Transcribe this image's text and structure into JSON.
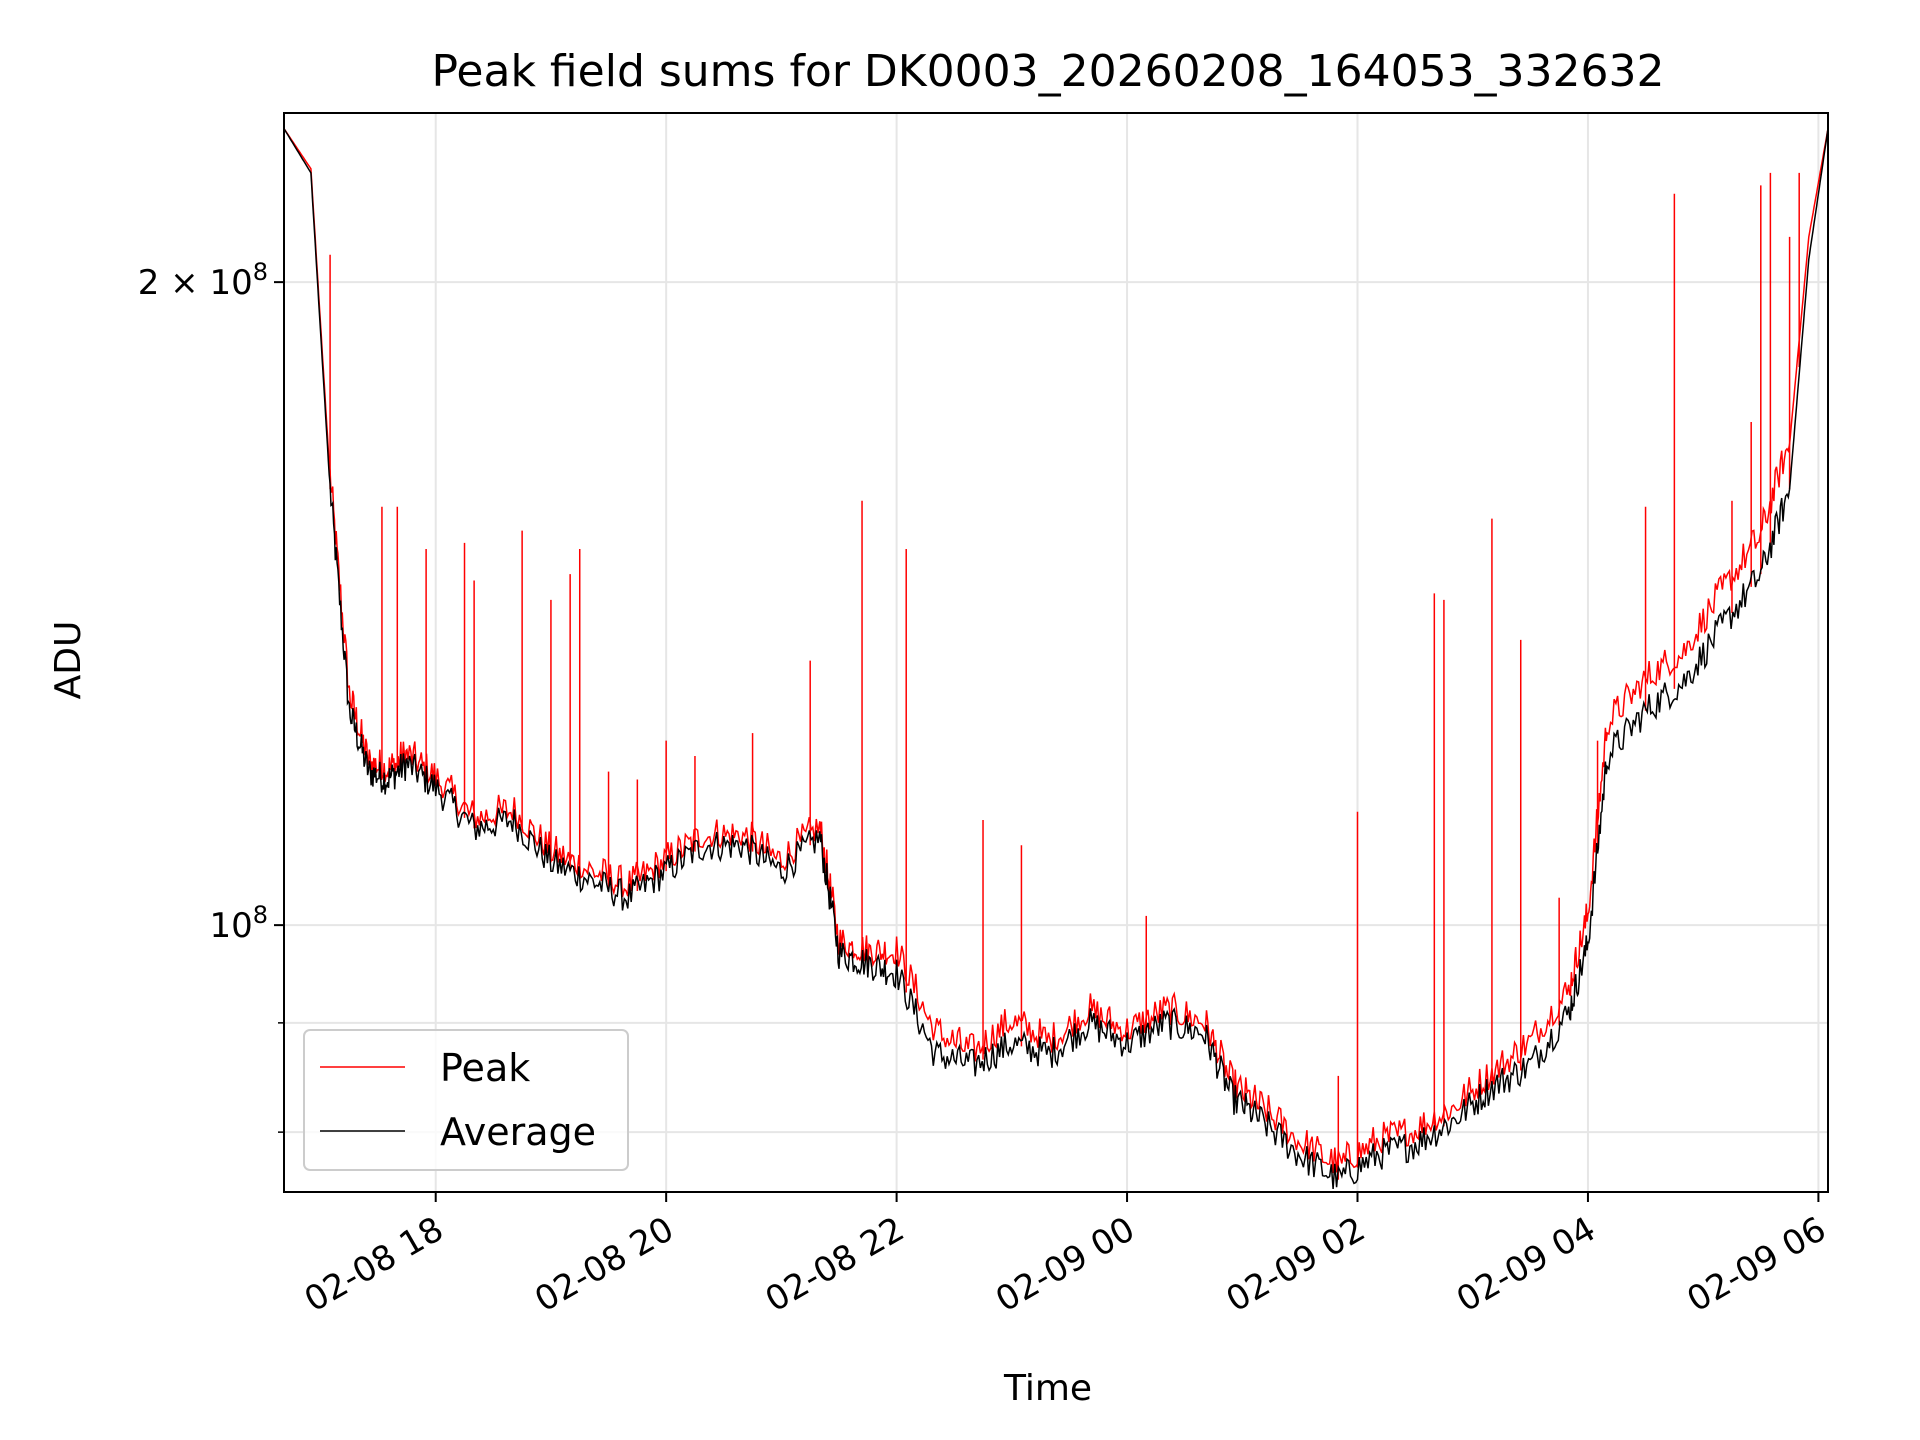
{
  "chart_data": {
    "type": "line",
    "title": "Peak field sums for DK0003_20260208_164053_332632",
    "xlabel": "Time",
    "ylabel": "ADU",
    "yscale": "log",
    "ylim": [
      75000000,
      240000000
    ],
    "xlim": [
      "2026-02-08 16:41",
      "2026-02-09 06:05"
    ],
    "grid": true,
    "legend": {
      "position": "lower-left",
      "entries": [
        "Peak",
        "Average"
      ]
    },
    "x_ticks": [
      "02-08 18",
      "02-08 20",
      "02-08 22",
      "02-09 00",
      "02-09 02",
      "02-09 04",
      "02-09 06"
    ],
    "y_ticks": [
      {
        "value": 200000000,
        "label": "2 × 10⁸",
        "mantissa": "2",
        "base": "10",
        "exp": "8"
      },
      {
        "value": 100000000,
        "label": "10⁸",
        "mantissa": "",
        "base": "10",
        "exp": "8"
      }
    ],
    "y_minor_ticks": [
      80000000,
      90000000
    ],
    "colors": {
      "peak": "#ff0000",
      "average": "#000000",
      "grid": "#e6e6e6"
    },
    "x": [
      "2026-02-08 16:41",
      "2026-02-08 16:55",
      "2026-02-08 17:05",
      "2026-02-08 17:15",
      "2026-02-08 17:25",
      "2026-02-08 17:35",
      "2026-02-08 17:45",
      "2026-02-08 18:00",
      "2026-02-08 18:20",
      "2026-02-08 18:40",
      "2026-02-08 19:00",
      "2026-02-08 19:20",
      "2026-02-08 19:40",
      "2026-02-08 20:00",
      "2026-02-08 20:20",
      "2026-02-08 20:40",
      "2026-02-08 21:00",
      "2026-02-08 21:20",
      "2026-02-08 21:30",
      "2026-02-08 21:45",
      "2026-02-08 22:00",
      "2026-02-08 22:20",
      "2026-02-08 22:40",
      "2026-02-08 23:00",
      "2026-02-08 23:20",
      "2026-02-08 23:40",
      "2026-02-09 00:00",
      "2026-02-09 00:20",
      "2026-02-09 00:40",
      "2026-02-09 00:55",
      "2026-02-09 01:10",
      "2026-02-09 01:30",
      "2026-02-09 01:50",
      "2026-02-09 02:10",
      "2026-02-09 02:30",
      "2026-02-09 02:50",
      "2026-02-09 03:10",
      "2026-02-09 03:30",
      "2026-02-09 03:50",
      "2026-02-09 04:00",
      "2026-02-09 04:10",
      "2026-02-09 04:30",
      "2026-02-09 04:50",
      "2026-02-09 05:10",
      "2026-02-09 05:30",
      "2026-02-09 05:45",
      "2026-02-09 05:55",
      "2026-02-09 06:05"
    ],
    "series": [
      {
        "name": "Peak",
        "values": [
          236000000,
          226000000,
          162000000,
          128000000,
          119000000,
          118000000,
          120000000,
          117000000,
          112000000,
          113000000,
          108000000,
          106000000,
          104000000,
          107000000,
          110000000,
          110000000,
          107000000,
          111000000,
          98000000,
          97000000,
          97000000,
          89000000,
          87000000,
          90000000,
          88000000,
          91000000,
          89000000,
          91000000,
          90000000,
          84000000,
          82000000,
          79000000,
          77000000,
          79000000,
          80000000,
          82000000,
          85000000,
          88000000,
          93000000,
          101000000,
          124000000,
          130000000,
          134000000,
          143000000,
          152000000,
          168000000,
          210000000,
          236000000
        ]
      },
      {
        "name": "Average",
        "values": [
          236000000,
          225000000,
          160000000,
          126000000,
          118000000,
          117000000,
          119000000,
          116000000,
          111000000,
          112000000,
          107000000,
          105000000,
          103000000,
          106000000,
          109000000,
          109000000,
          106000000,
          110000000,
          97000000,
          96000000,
          95000000,
          87000000,
          86000000,
          88000000,
          87000000,
          90000000,
          88000000,
          90000000,
          89000000,
          83000000,
          81000000,
          78000000,
          76000000,
          78000000,
          79000000,
          81000000,
          84000000,
          86000000,
          91000000,
          98000000,
          120000000,
          126000000,
          130000000,
          138000000,
          146000000,
          160000000,
          205000000,
          236000000
        ]
      }
    ],
    "spikes": [
      {
        "x": "2026-02-08 17:05",
        "peak": 206000000
      },
      {
        "x": "2026-02-08 17:32",
        "peak": 157000000
      },
      {
        "x": "2026-02-08 17:40",
        "peak": 157000000
      },
      {
        "x": "2026-02-08 17:55",
        "peak": 150000000
      },
      {
        "x": "2026-02-08 18:15",
        "peak": 151000000
      },
      {
        "x": "2026-02-08 18:20",
        "peak": 145000000
      },
      {
        "x": "2026-02-08 18:45",
        "peak": 153000000
      },
      {
        "x": "2026-02-08 19:00",
        "peak": 142000000
      },
      {
        "x": "2026-02-08 19:10",
        "peak": 146000000
      },
      {
        "x": "2026-02-08 19:15",
        "peak": 150000000
      },
      {
        "x": "2026-02-08 19:30",
        "peak": 118000000
      },
      {
        "x": "2026-02-08 19:45",
        "peak": 117000000
      },
      {
        "x": "2026-02-08 20:00",
        "peak": 122000000
      },
      {
        "x": "2026-02-08 20:15",
        "peak": 120000000
      },
      {
        "x": "2026-02-08 20:45",
        "peak": 123000000
      },
      {
        "x": "2026-02-08 21:15",
        "peak": 133000000
      },
      {
        "x": "2026-02-08 21:42",
        "peak": 158000000
      },
      {
        "x": "2026-02-08 22:05",
        "peak": 150000000
      },
      {
        "x": "2026-02-08 22:45",
        "peak": 112000000
      },
      {
        "x": "2026-02-08 23:05",
        "peak": 109000000
      },
      {
        "x": "2026-02-09 00:10",
        "peak": 101000000
      },
      {
        "x": "2026-02-09 01:50",
        "peak": 85000000
      },
      {
        "x": "2026-02-09 02:00",
        "peak": 113000000
      },
      {
        "x": "2026-02-09 02:40",
        "peak": 143000000
      },
      {
        "x": "2026-02-09 02:45",
        "peak": 142000000
      },
      {
        "x": "2026-02-09 03:10",
        "peak": 155000000
      },
      {
        "x": "2026-02-09 03:25",
        "peak": 136000000
      },
      {
        "x": "2026-02-09 03:45",
        "peak": 103000000
      },
      {
        "x": "2026-02-09 04:05",
        "peak": 122000000
      },
      {
        "x": "2026-02-09 04:30",
        "peak": 157000000
      },
      {
        "x": "2026-02-09 04:45",
        "peak": 220000000
      },
      {
        "x": "2026-02-09 05:15",
        "peak": 158000000
      },
      {
        "x": "2026-02-09 05:25",
        "peak": 172000000
      },
      {
        "x": "2026-02-09 05:30",
        "peak": 222000000
      },
      {
        "x": "2026-02-09 05:35",
        "peak": 225000000
      },
      {
        "x": "2026-02-09 05:45",
        "peak": 210000000
      },
      {
        "x": "2026-02-09 05:50",
        "peak": 225000000
      }
    ]
  }
}
